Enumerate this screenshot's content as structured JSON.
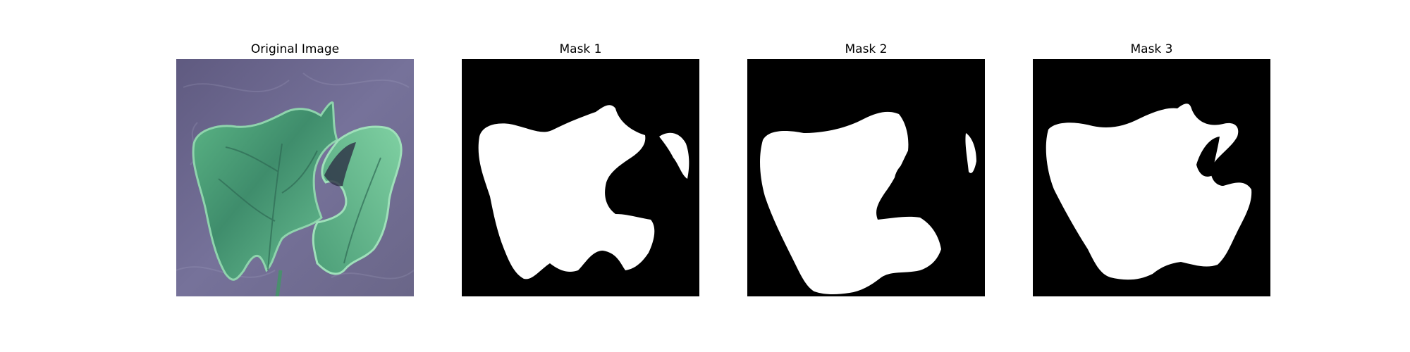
{
  "figure": {
    "panels": [
      {
        "title": "Original Image"
      },
      {
        "title": "Mask 1"
      },
      {
        "title": "Mask 2"
      },
      {
        "title": "Mask 3"
      }
    ]
  },
  "colors": {
    "background": "#6e6a8c",
    "leaf_primary": "#4fa37a",
    "leaf_light": "#7bc79c",
    "leaf_dark": "#3a6e5c",
    "mask_background": "#000000",
    "mask_foreground": "#ffffff"
  }
}
